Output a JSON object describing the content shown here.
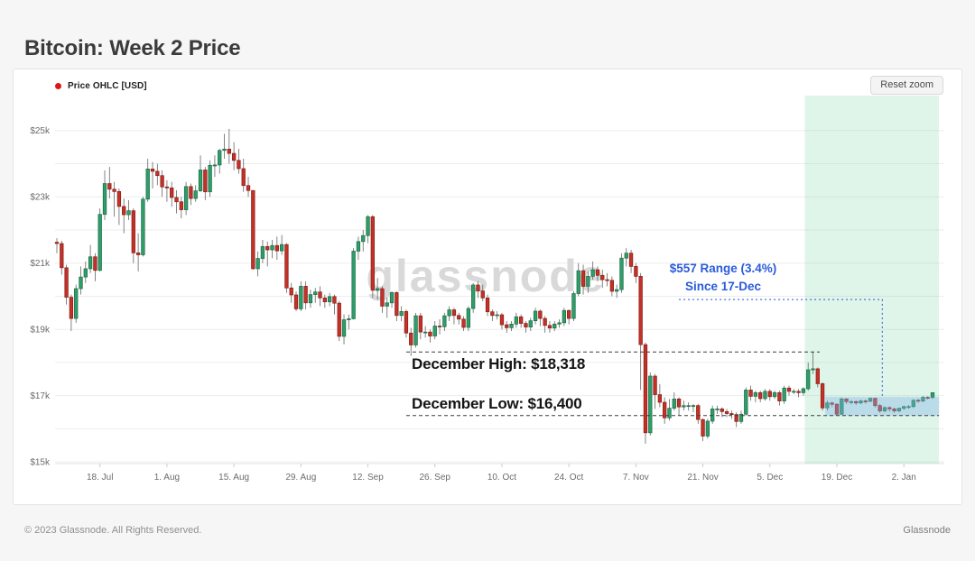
{
  "page": {
    "title": "Bitcoin: Week 2 Price"
  },
  "card": {
    "legend": {
      "label": "Price OHLC [USD]",
      "dot_color": "#e01414"
    },
    "reset_button_label": "Reset zoom"
  },
  "footer": {
    "left": "© 2023 Glassnode. All Rights Reserved.",
    "right": "Glassnode"
  },
  "chart_data": {
    "type": "candlestick-ohlc",
    "title": "Bitcoin: Week 2 Price",
    "series_name": "Price OHLC [USD]",
    "watermark": "glassnode",
    "ohlc_format": "[open, high, low, close] in USD thousands, daily candles left-to-right",
    "ylim": [
      14.95,
      26.0
    ],
    "y_ticks": [
      {
        "value": 15,
        "label": "$15k"
      },
      {
        "value": 17,
        "label": "$17k"
      },
      {
        "value": 19,
        "label": "$19k"
      },
      {
        "value": 21,
        "label": "$21k"
      },
      {
        "value": 23,
        "label": "$23k"
      },
      {
        "value": 25,
        "label": "$25k"
      }
    ],
    "y_gridlines": [
      15,
      16,
      17,
      18,
      19,
      20,
      21,
      22,
      23,
      24,
      25
    ],
    "x_ticks": [
      {
        "day": 9,
        "label": "18. Jul"
      },
      {
        "day": 23,
        "label": "1. Aug"
      },
      {
        "day": 37,
        "label": "15. Aug"
      },
      {
        "day": 51,
        "label": "29. Aug"
      },
      {
        "day": 65,
        "label": "12. Sep"
      },
      {
        "day": 79,
        "label": "26. Sep"
      },
      {
        "day": 93,
        "label": "10. Oct"
      },
      {
        "day": 107,
        "label": "24. Oct"
      },
      {
        "day": 121,
        "label": "7. Nov"
      },
      {
        "day": 135,
        "label": "21. Nov"
      },
      {
        "day": 149,
        "label": "5. Dec"
      },
      {
        "day": 163,
        "label": "19. Dec"
      },
      {
        "day": 177,
        "label": "2. Jan"
      }
    ],
    "candles": [
      [
        21.63,
        21.75,
        21.3,
        21.59
      ],
      [
        21.59,
        21.67,
        20.65,
        20.86
      ],
      [
        20.86,
        20.95,
        19.75,
        19.97
      ],
      [
        19.97,
        20.05,
        18.95,
        19.33
      ],
      [
        19.33,
        20.35,
        19.2,
        20.23
      ],
      [
        20.23,
        20.9,
        20.05,
        20.58
      ],
      [
        20.58,
        21.05,
        20.4,
        20.83
      ],
      [
        20.83,
        21.55,
        20.7,
        21.19
      ],
      [
        21.19,
        21.3,
        20.45,
        20.78
      ],
      [
        20.78,
        22.65,
        20.75,
        22.47
      ],
      [
        22.47,
        23.8,
        22.3,
        23.4
      ],
      [
        23.4,
        23.9,
        22.95,
        23.23
      ],
      [
        23.23,
        23.45,
        22.4,
        23.16
      ],
      [
        23.16,
        23.25,
        22.15,
        22.71
      ],
      [
        22.71,
        22.95,
        21.9,
        22.46
      ],
      [
        22.46,
        22.9,
        22.3,
        22.58
      ],
      [
        22.58,
        22.65,
        21.0,
        21.31
      ],
      [
        21.31,
        21.9,
        20.75,
        21.25
      ],
      [
        21.25,
        23.0,
        21.2,
        22.93
      ],
      [
        22.93,
        24.15,
        22.85,
        23.84
      ],
      [
        23.84,
        24.05,
        23.25,
        23.77
      ],
      [
        23.77,
        24.0,
        23.35,
        23.64
      ],
      [
        23.64,
        23.8,
        23.0,
        23.3
      ],
      [
        23.3,
        23.5,
        22.85,
        23.27
      ],
      [
        23.27,
        23.45,
        22.7,
        22.98
      ],
      [
        22.98,
        23.2,
        22.5,
        22.85
      ],
      [
        22.85,
        23.0,
        22.35,
        22.61
      ],
      [
        22.61,
        23.45,
        22.45,
        23.31
      ],
      [
        23.31,
        23.4,
        22.75,
        22.95
      ],
      [
        22.95,
        23.35,
        22.85,
        23.18
      ],
      [
        23.18,
        24.25,
        23.15,
        23.81
      ],
      [
        23.81,
        23.9,
        22.9,
        23.15
      ],
      [
        23.15,
        24.1,
        23.0,
        23.95
      ],
      [
        23.95,
        24.25,
        23.6,
        23.96
      ],
      [
        23.96,
        24.45,
        23.7,
        24.4
      ],
      [
        24.4,
        24.9,
        24.15,
        24.44
      ],
      [
        24.44,
        25.05,
        24.0,
        24.31
      ],
      [
        24.31,
        24.65,
        23.8,
        24.1
      ],
      [
        24.1,
        24.45,
        23.7,
        23.85
      ],
      [
        23.85,
        24.15,
        23.15,
        23.34
      ],
      [
        23.34,
        23.6,
        23.0,
        23.19
      ],
      [
        23.19,
        23.2,
        20.8,
        20.83
      ],
      [
        20.83,
        21.35,
        20.6,
        21.14
      ],
      [
        21.14,
        21.7,
        21.0,
        21.5
      ],
      [
        21.5,
        21.65,
        20.9,
        21.4
      ],
      [
        21.4,
        21.7,
        21.15,
        21.53
      ],
      [
        21.53,
        21.8,
        21.1,
        21.37
      ],
      [
        21.37,
        21.85,
        21.25,
        21.56
      ],
      [
        21.56,
        21.6,
        20.1,
        20.25
      ],
      [
        20.25,
        20.4,
        19.8,
        20.04
      ],
      [
        20.04,
        20.15,
        19.55,
        19.62
      ],
      [
        19.62,
        20.45,
        19.55,
        20.3
      ],
      [
        20.3,
        20.45,
        19.6,
        19.8
      ],
      [
        19.8,
        20.2,
        19.65,
        20.05
      ],
      [
        20.05,
        20.25,
        19.8,
        20.13
      ],
      [
        20.13,
        20.3,
        19.7,
        19.95
      ],
      [
        19.95,
        20.05,
        19.65,
        19.83
      ],
      [
        19.83,
        20.1,
        19.7,
        19.99
      ],
      [
        19.99,
        20.05,
        19.45,
        19.79
      ],
      [
        19.79,
        19.85,
        18.65,
        18.79
      ],
      [
        18.79,
        19.45,
        18.55,
        19.29
      ],
      [
        19.29,
        19.45,
        19.0,
        19.32
      ],
      [
        19.32,
        21.45,
        19.3,
        21.36
      ],
      [
        21.36,
        21.8,
        21.1,
        21.65
      ],
      [
        21.65,
        22.0,
        21.35,
        21.83
      ],
      [
        21.83,
        22.45,
        21.6,
        22.4
      ],
      [
        22.4,
        22.45,
        19.95,
        20.18
      ],
      [
        20.18,
        20.55,
        19.9,
        20.23
      ],
      [
        20.23,
        20.3,
        19.5,
        19.7
      ],
      [
        19.7,
        19.95,
        19.35,
        19.8
      ],
      [
        19.8,
        20.15,
        19.65,
        20.11
      ],
      [
        20.11,
        20.15,
        19.25,
        19.42
      ],
      [
        19.42,
        19.7,
        19.25,
        19.54
      ],
      [
        19.54,
        19.6,
        18.75,
        18.89
      ],
      [
        18.89,
        19.05,
        18.2,
        18.53
      ],
      [
        18.53,
        19.5,
        18.45,
        19.41
      ],
      [
        19.41,
        19.5,
        18.7,
        18.92
      ],
      [
        18.92,
        19.1,
        18.75,
        18.92
      ],
      [
        18.92,
        19.0,
        18.6,
        18.8
      ],
      [
        18.8,
        19.25,
        18.7,
        19.1
      ],
      [
        19.1,
        19.3,
        18.85,
        19.08
      ],
      [
        19.08,
        19.5,
        18.95,
        19.41
      ],
      [
        19.41,
        19.7,
        19.25,
        19.59
      ],
      [
        19.59,
        19.65,
        19.15,
        19.42
      ],
      [
        19.42,
        19.5,
        19.15,
        19.31
      ],
      [
        19.31,
        19.4,
        18.95,
        19.06
      ],
      [
        19.06,
        19.7,
        18.95,
        19.63
      ],
      [
        19.63,
        20.4,
        19.5,
        20.34
      ],
      [
        20.34,
        20.45,
        19.95,
        20.16
      ],
      [
        20.16,
        20.35,
        19.85,
        19.95
      ],
      [
        19.95,
        20.05,
        19.4,
        19.53
      ],
      [
        19.53,
        19.6,
        19.25,
        19.42
      ],
      [
        19.42,
        19.55,
        19.3,
        19.44
      ],
      [
        19.44,
        19.5,
        19.0,
        19.14
      ],
      [
        19.14,
        19.25,
        18.9,
        19.05
      ],
      [
        19.05,
        19.25,
        18.95,
        19.16
      ],
      [
        19.16,
        19.5,
        19.05,
        19.38
      ],
      [
        19.38,
        19.45,
        19.05,
        19.18
      ],
      [
        19.18,
        19.25,
        18.9,
        19.07
      ],
      [
        19.07,
        19.35,
        18.95,
        19.26
      ],
      [
        19.26,
        19.65,
        19.15,
        19.55
      ],
      [
        19.55,
        19.6,
        19.1,
        19.33
      ],
      [
        19.33,
        19.4,
        18.9,
        19.12
      ],
      [
        19.12,
        19.25,
        18.9,
        19.04
      ],
      [
        19.04,
        19.25,
        18.95,
        19.16
      ],
      [
        19.16,
        19.3,
        19.05,
        19.2
      ],
      [
        19.2,
        19.65,
        19.1,
        19.57
      ],
      [
        19.57,
        19.6,
        19.15,
        19.33
      ],
      [
        19.33,
        20.15,
        19.25,
        20.08
      ],
      [
        20.08,
        21.0,
        20.0,
        20.77
      ],
      [
        20.77,
        20.95,
        20.05,
        20.3
      ],
      [
        20.3,
        20.75,
        20.1,
        20.6
      ],
      [
        20.6,
        21.05,
        20.5,
        20.8
      ],
      [
        20.8,
        20.9,
        20.45,
        20.63
      ],
      [
        20.63,
        20.8,
        20.25,
        20.5
      ],
      [
        20.5,
        20.7,
        20.3,
        20.48
      ],
      [
        20.48,
        20.6,
        20.0,
        20.15
      ],
      [
        20.15,
        20.35,
        19.95,
        20.2
      ],
      [
        20.2,
        21.3,
        20.1,
        21.15
      ],
      [
        21.15,
        21.45,
        20.9,
        21.3
      ],
      [
        21.3,
        21.4,
        20.7,
        20.9
      ],
      [
        20.9,
        21.0,
        20.4,
        20.6
      ],
      [
        20.6,
        20.7,
        17.17,
        18.54
      ],
      [
        18.54,
        18.6,
        15.55,
        15.88
      ],
      [
        15.88,
        17.7,
        15.8,
        17.59
      ],
      [
        17.59,
        17.65,
        16.6,
        17.03
      ],
      [
        17.03,
        17.35,
        16.65,
        16.8
      ],
      [
        16.8,
        16.95,
        16.15,
        16.33
      ],
      [
        16.33,
        16.9,
        16.25,
        16.62
      ],
      [
        16.62,
        17.1,
        16.55,
        16.9
      ],
      [
        16.9,
        16.95,
        16.4,
        16.66
      ],
      [
        16.66,
        16.85,
        16.55,
        16.7
      ],
      [
        16.7,
        16.8,
        16.55,
        16.7
      ],
      [
        16.7,
        16.75,
        16.5,
        16.7
      ],
      [
        16.7,
        16.75,
        16.15,
        16.28
      ],
      [
        16.28,
        16.31,
        15.63,
        15.78
      ],
      [
        15.78,
        16.3,
        15.7,
        16.23
      ],
      [
        16.23,
        16.7,
        16.15,
        16.6
      ],
      [
        16.6,
        16.7,
        16.45,
        16.6
      ],
      [
        16.6,
        16.65,
        16.35,
        16.52
      ],
      [
        16.52,
        16.6,
        16.35,
        16.46
      ],
      [
        16.46,
        16.55,
        16.3,
        16.43
      ],
      [
        16.43,
        16.5,
        16.05,
        16.22
      ],
      [
        16.22,
        16.55,
        16.15,
        16.44
      ],
      [
        16.44,
        17.25,
        16.4,
        17.17
      ],
      [
        17.17,
        17.3,
        16.85,
        16.98
      ],
      [
        16.98,
        17.15,
        16.8,
        17.09
      ],
      [
        17.09,
        17.15,
        16.8,
        16.91
      ],
      [
        16.91,
        17.2,
        16.85,
        17.13
      ],
      [
        17.13,
        17.2,
        16.85,
        16.97
      ],
      [
        16.97,
        17.15,
        16.9,
        17.09
      ],
      [
        17.09,
        17.15,
        16.7,
        16.84
      ],
      [
        16.84,
        17.3,
        16.75,
        17.23
      ],
      [
        17.23,
        17.3,
        17.0,
        17.13
      ],
      [
        17.13,
        17.2,
        17.05,
        17.13
      ],
      [
        17.13,
        17.2,
        16.95,
        17.09
      ],
      [
        17.09,
        17.25,
        17.0,
        17.21
      ],
      [
        17.21,
        18.0,
        17.15,
        17.78
      ],
      [
        17.78,
        18.32,
        17.65,
        17.81
      ],
      [
        17.81,
        17.85,
        17.25,
        17.36
      ],
      [
        17.36,
        17.4,
        16.55,
        16.63
      ],
      [
        16.63,
        16.85,
        16.55,
        16.78
      ],
      [
        16.78,
        16.82,
        16.65,
        16.74
      ],
      [
        16.74,
        16.78,
        16.4,
        16.44
      ],
      [
        16.44,
        16.95,
        16.42,
        16.9
      ],
      [
        16.9,
        16.93,
        16.75,
        16.82
      ],
      [
        16.82,
        16.87,
        16.74,
        16.82
      ],
      [
        16.82,
        16.86,
        16.72,
        16.78
      ],
      [
        16.78,
        16.88,
        16.74,
        16.84
      ],
      [
        16.84,
        16.88,
        16.76,
        16.83
      ],
      [
        16.83,
        16.95,
        16.8,
        16.92
      ],
      [
        16.92,
        16.94,
        16.64,
        16.7
      ],
      [
        16.7,
        16.75,
        16.48,
        16.54
      ],
      [
        16.54,
        16.68,
        16.5,
        16.64
      ],
      [
        16.64,
        16.68,
        16.52,
        16.6
      ],
      [
        16.6,
        16.64,
        16.48,
        16.54
      ],
      [
        16.54,
        16.64,
        16.5,
        16.62
      ],
      [
        16.62,
        16.7,
        16.56,
        16.67
      ],
      [
        16.67,
        16.72,
        16.6,
        16.67
      ],
      [
        16.67,
        16.89,
        16.63,
        16.86
      ],
      [
        16.86,
        16.9,
        16.78,
        16.84
      ],
      [
        16.84,
        16.99,
        16.8,
        16.95
      ],
      [
        16.95,
        16.98,
        16.88,
        16.94
      ],
      [
        16.94,
        17.1,
        16.9,
        17.09
      ]
    ],
    "highlight_region": {
      "start_day": 156.3
    },
    "range_box": {
      "start_day": 160.6,
      "top_price": 16.957,
      "bottom_price": 16.4
    },
    "annotations": [
      {
        "id": "range-label",
        "line1": "$557 Range (3.4%)",
        "line2": "Since 17-Dec",
        "connector": {
          "from_day": 130,
          "to_day": 172.5,
          "price": 19.9
        }
      },
      {
        "id": "december-high",
        "text": "December High: $18,318",
        "price": 18.318,
        "line_from_day": 73,
        "line_to_day": 159.4
      },
      {
        "id": "december-low",
        "text": "December Low: $16,400",
        "price": 16.4,
        "line_from_day": 73,
        "line_to_day": null
      }
    ],
    "colors": {
      "up": "#2f9e6a",
      "up_border": "#1a6b45",
      "down": "#c23229",
      "down_border": "#8a1d15",
      "wick": "#666666",
      "grid": "#ededed",
      "axis_line": "#e2e2e2",
      "axis_text": "#6b6b6b",
      "watermark": "#d9d9d9",
      "highlight_green": "#7ed9aa",
      "range_box_fill": "#7db4e6",
      "range_box_border": "#8fb8e4",
      "annotation_blue": "#2b5bdb",
      "dashed_line": "#3f3f3f"
    },
    "legend_position": "top-left",
    "grid": "horizontal-only"
  }
}
